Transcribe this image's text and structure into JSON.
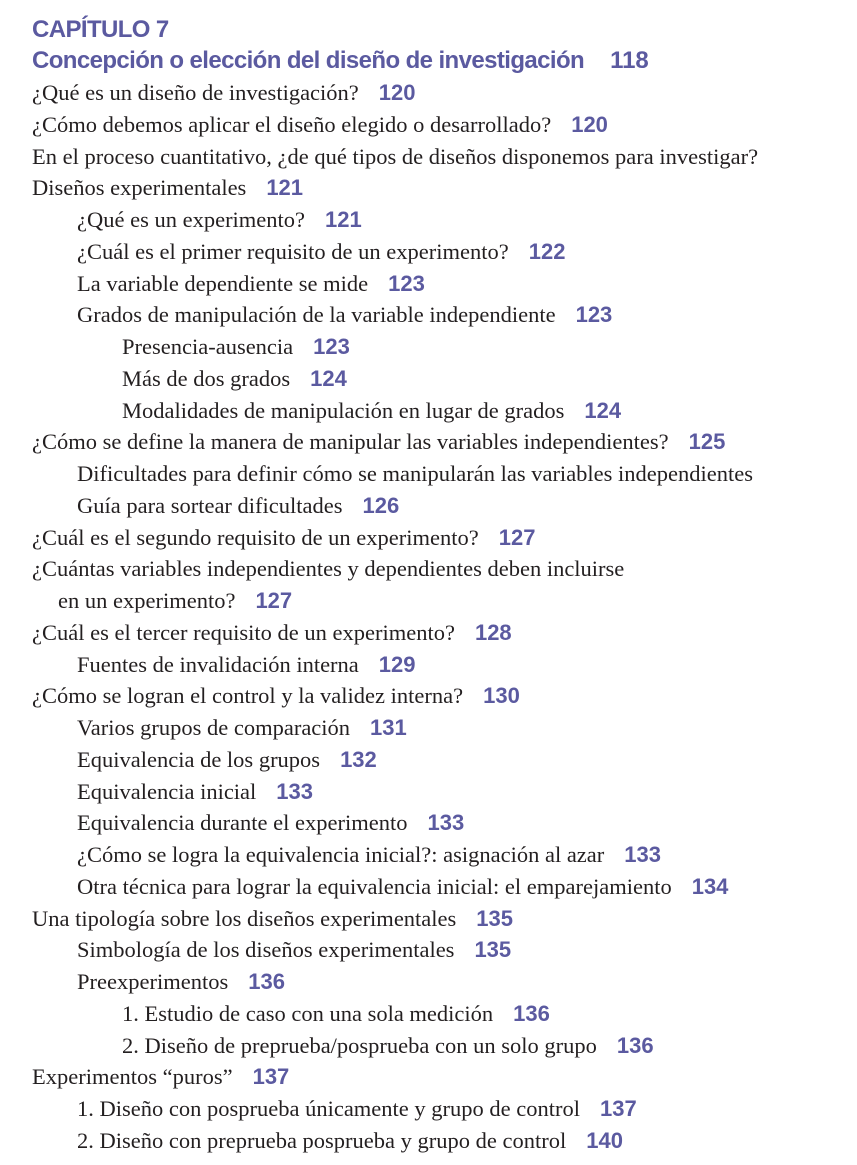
{
  "chapter_label": "CAPÍTULO 7",
  "chapter_title": "Concepción o elección del diseño de investigación",
  "chapter_page": "118",
  "accent_color": "#5b5aa0",
  "entries": [
    {
      "text": "¿Qué es un diseño de investigación?",
      "page": "120",
      "level": 0
    },
    {
      "text": "¿Cómo debemos aplicar el diseño elegido o desarrollado?",
      "page": "120",
      "level": 0
    },
    {
      "text": "En el proceso cuantitativo, ¿de qué tipos de diseños disponemos para investigar?",
      "page": "",
      "level": 0
    },
    {
      "text": "Diseños experimentales",
      "page": "121",
      "level": 0
    },
    {
      "text": "¿Qué es un experimento?",
      "page": "121",
      "level": 1
    },
    {
      "text": "¿Cuál es el primer requisito de un experimento?",
      "page": "122",
      "level": 1
    },
    {
      "text": "La variable dependiente se mide",
      "page": "123",
      "level": 1
    },
    {
      "text": "Grados de manipulación de la variable independiente",
      "page": "123",
      "level": 1
    },
    {
      "text": "Presencia-ausencia",
      "page": "123",
      "level": 2
    },
    {
      "text": "Más de dos grados",
      "page": "124",
      "level": 2
    },
    {
      "text": "Modalidades de manipulación en lugar de grados",
      "page": "124",
      "level": 2
    },
    {
      "text": "¿Cómo se define la manera de manipular las variables independientes?",
      "page": "125",
      "level": 0
    },
    {
      "text": "Dificultades para definir cómo se manipularán las variables independientes",
      "page": "",
      "level": 1
    },
    {
      "text": "Guía para sortear dificultades",
      "page": "126",
      "level": 1
    },
    {
      "text": "¿Cuál es el segundo requisito de un experimento?",
      "page": "127",
      "level": 0
    },
    {
      "text": "¿Cuántas variables independientes y dependientes deben incluirse",
      "page": "",
      "level": 0
    },
    {
      "text": "en un experimento?",
      "page": "127",
      "level": 0.5
    },
    {
      "text": "¿Cuál es el tercer requisito de un experimento?",
      "page": "128",
      "level": 0
    },
    {
      "text": "Fuentes de invalidación interna",
      "page": "129",
      "level": 1
    },
    {
      "text": "¿Cómo se logran el control y la validez interna?",
      "page": "130",
      "level": 0
    },
    {
      "text": "Varios grupos de comparación",
      "page": "131",
      "level": 1
    },
    {
      "text": "Equivalencia de los grupos",
      "page": "132",
      "level": 1
    },
    {
      "text": "Equivalencia inicial",
      "page": "133",
      "level": 1
    },
    {
      "text": "Equivalencia durante el experimento",
      "page": "133",
      "level": 1
    },
    {
      "text": "¿Cómo se logra la equivalencia inicial?: asignación al azar",
      "page": "133",
      "level": 1
    },
    {
      "text": "Otra técnica para lograr la equivalencia inicial: el emparejamiento",
      "page": "134",
      "level": 1
    },
    {
      "text": "Una tipología sobre los diseños experimentales",
      "page": "135",
      "level": 0
    },
    {
      "text": "Simbología de los diseños experimentales",
      "page": "135",
      "level": 1
    },
    {
      "text": "Preexperimentos",
      "page": "136",
      "level": 1
    },
    {
      "text": "1.  Estudio de caso con una sola medición",
      "page": "136",
      "level": 2
    },
    {
      "text": "2.  Diseño de preprueba/posprueba con un solo grupo",
      "page": "136",
      "level": 2
    },
    {
      "text": "Experimentos “puros”",
      "page": "137",
      "level": 0
    },
    {
      "text": "1.  Diseño con posprueba únicamente y grupo de control",
      "page": "137",
      "level": 1
    },
    {
      "text": "2.  Diseño con preprueba posprueba y grupo de control",
      "page": "140",
      "level": 1
    }
  ]
}
